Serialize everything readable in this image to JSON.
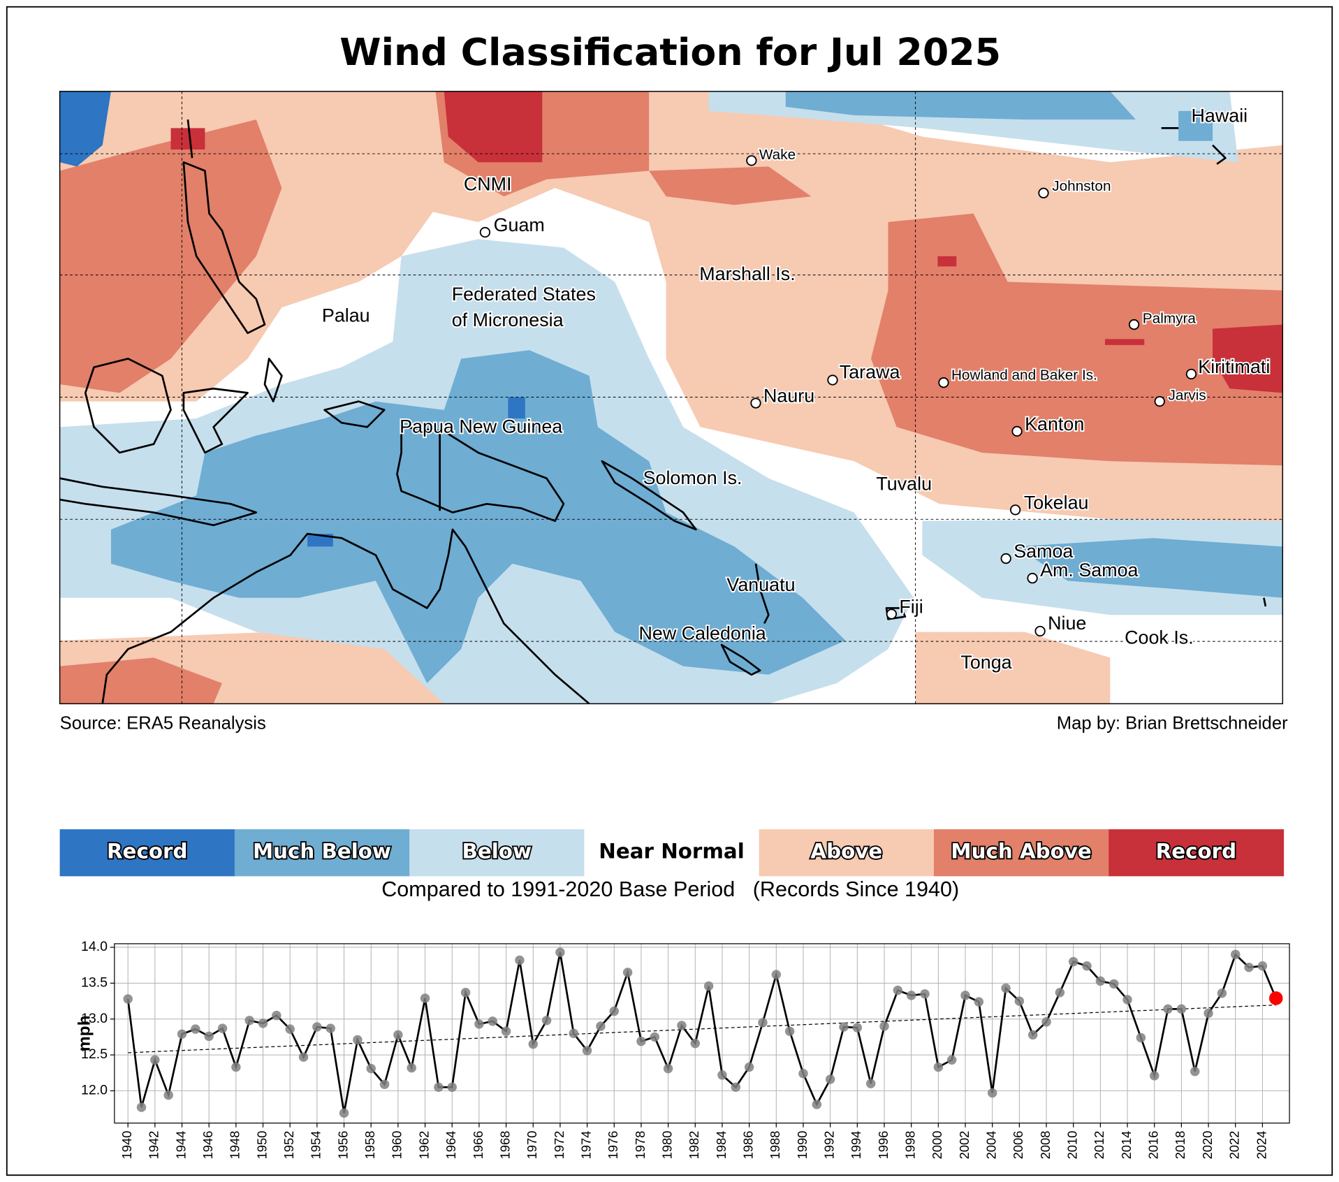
{
  "title": "Wind Classification for Jul 2025",
  "map": {
    "labels": [
      "Hawaii",
      "Wake",
      "Johnston",
      "CNMI",
      "Guam",
      "Marshall Is.",
      "Palau",
      "Federated States",
      "of Micronesia",
      "Palmyra",
      "Kiritimati",
      "Tarawa",
      "Howland and Baker Is.",
      "Jarvis",
      "Nauru",
      "Kanton",
      "Papua New Guinea",
      "Solomon Is.",
      "Tuvalu",
      "Tokelau",
      "Samoa",
      "Am. Samoa",
      "Vanuatu",
      "Fiji",
      "Niue",
      "New Caledonia",
      "Cook Is.",
      "Tonga"
    ],
    "source": "Source: ERA5 Reanalysis",
    "credit": "Map by: Brian Brettschneider"
  },
  "legend": {
    "categories": [
      {
        "label": "Record",
        "color": "#2e75c3"
      },
      {
        "label": "Much Below",
        "color": "#6fadd3"
      },
      {
        "label": "Below",
        "color": "#c6dfed"
      },
      {
        "label": "Near Normal",
        "color": "#ffffff"
      },
      {
        "label": "Above",
        "color": "#f7cab2"
      },
      {
        "label": "Much Above",
        "color": "#e2806a"
      },
      {
        "label": "Record",
        "color": "#c8303a"
      }
    ],
    "caption": "Compared to 1991-2020 Base Period   (Records Since 1940)"
  },
  "chart_data": {
    "type": "line",
    "ylabel": "mph",
    "x": [
      1940,
      1941,
      1942,
      1943,
      1944,
      1945,
      1946,
      1947,
      1948,
      1949,
      1950,
      1951,
      1952,
      1953,
      1954,
      1955,
      1956,
      1957,
      1958,
      1959,
      1960,
      1961,
      1962,
      1963,
      1964,
      1965,
      1966,
      1967,
      1968,
      1969,
      1970,
      1971,
      1972,
      1973,
      1974,
      1975,
      1976,
      1977,
      1978,
      1979,
      1980,
      1981,
      1982,
      1983,
      1984,
      1985,
      1986,
      1987,
      1988,
      1989,
      1990,
      1991,
      1992,
      1993,
      1994,
      1995,
      1996,
      1997,
      1998,
      1999,
      2000,
      2001,
      2002,
      2003,
      2004,
      2005,
      2006,
      2007,
      2008,
      2009,
      2010,
      2011,
      2012,
      2013,
      2014,
      2015,
      2016,
      2017,
      2018,
      2019,
      2020,
      2021,
      2022,
      2023,
      2024,
      2025
    ],
    "values": [
      13.28,
      11.77,
      12.43,
      11.94,
      12.79,
      12.86,
      12.76,
      12.87,
      12.33,
      12.98,
      12.94,
      13.05,
      12.86,
      12.47,
      12.89,
      12.87,
      11.69,
      12.71,
      12.31,
      12.09,
      12.78,
      12.32,
      13.29,
      12.05,
      12.05,
      13.37,
      12.93,
      12.97,
      12.83,
      13.82,
      12.65,
      12.98,
      13.93,
      12.8,
      12.56,
      12.9,
      13.11,
      13.65,
      12.69,
      12.75,
      12.31,
      12.91,
      12.66,
      13.46,
      12.22,
      12.05,
      12.33,
      12.95,
      13.62,
      12.83,
      12.24,
      11.81,
      12.16,
      12.89,
      12.88,
      12.1,
      12.9,
      13.4,
      13.33,
      13.35,
      12.33,
      12.43,
      13.33,
      13.24,
      11.97,
      13.43,
      13.25,
      12.78,
      12.96,
      13.37,
      13.8,
      13.74,
      13.53,
      13.49,
      13.27,
      12.74,
      12.21,
      13.14,
      13.14,
      12.27,
      13.08,
      13.36,
      13.9,
      13.72,
      13.74,
      13.29
    ],
    "color": "#000000",
    "marker_color": "#808080",
    "highlight_color": "#ff0000",
    "trendline": true,
    "grid": true,
    "xlim": [
      1939,
      2026
    ],
    "xticks": [
      1940,
      1942,
      1944,
      1946,
      1948,
      1950,
      1952,
      1954,
      1956,
      1958,
      1960,
      1962,
      1964,
      1966,
      1968,
      1970,
      1972,
      1974,
      1976,
      1978,
      1980,
      1982,
      1984,
      1986,
      1988,
      1990,
      1992,
      1994,
      1996,
      1998,
      2000,
      2002,
      2004,
      2006,
      2008,
      2010,
      2012,
      2014,
      2016,
      2018,
      2020,
      2022,
      2024
    ],
    "ylim": [
      11.55,
      14.05
    ],
    "yticks": [
      {
        "value": 12,
        "label": "12.0"
      },
      {
        "value": 12.5,
        "label": "12.5"
      },
      {
        "value": 13,
        "label": "13.0"
      },
      {
        "value": 13.5,
        "label": "13.5"
      },
      {
        "value": 14,
        "label": "14.0"
      }
    ]
  }
}
